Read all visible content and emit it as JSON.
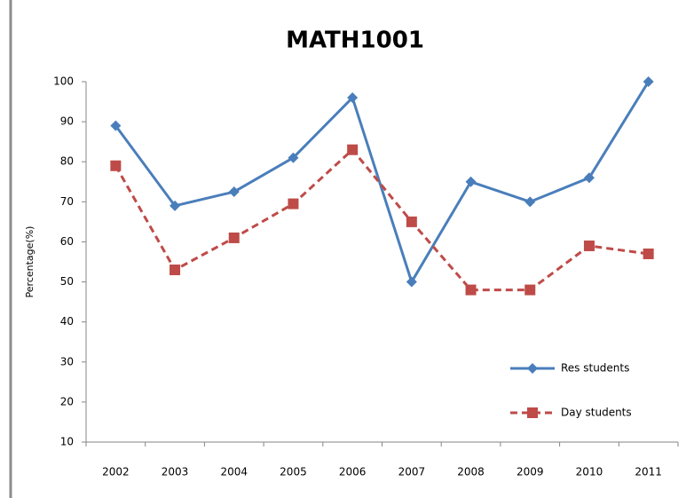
{
  "chart_data": {
    "type": "line",
    "title": "MATH1001",
    "y_label": "Percentage(%)",
    "categories": [
      "2002",
      "2003",
      "2004",
      "2005",
      "2006",
      "2007",
      "2008",
      "2009",
      "2010",
      "2011"
    ],
    "series": [
      {
        "name": "Res students",
        "color": "#4a7ebb",
        "line_style": "solid",
        "marker": "diamond",
        "values": [
          89,
          69,
          72.5,
          81,
          96,
          50,
          75,
          70,
          76,
          100
        ]
      },
      {
        "name": "Day students",
        "color": "#be4b48",
        "line_style": "dashed",
        "marker": "square",
        "values": [
          79,
          53,
          61,
          69.5,
          83,
          65,
          48,
          48,
          59,
          57
        ]
      }
    ],
    "ylim": [
      10,
      100
    ],
    "yticks": [
      10,
      20,
      30,
      40,
      50,
      60,
      70,
      80,
      90,
      100
    ],
    "grid": false,
    "legend": "lower right"
  }
}
